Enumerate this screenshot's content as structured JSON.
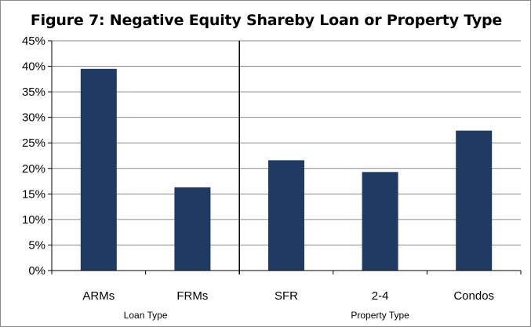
{
  "chart_data": {
    "type": "bar",
    "title": "Figure 7: Negative Equity Shareby Loan or Property Type",
    "categories": [
      "ARMs",
      "FRMs",
      "SFR",
      "2-4",
      "Condos"
    ],
    "values": [
      39.5,
      16.3,
      21.6,
      19.3,
      27.4
    ],
    "groups": [
      {
        "label": "Loan Type",
        "categories": [
          "ARMs",
          "FRMs"
        ]
      },
      {
        "label": "Property Type",
        "categories": [
          "SFR",
          "2-4",
          "Condos"
        ]
      }
    ],
    "ylim": [
      0,
      45
    ],
    "yticks": [
      "0%",
      "5%",
      "10%",
      "15%",
      "20%",
      "25%",
      "30%",
      "35%",
      "40%",
      "45%"
    ],
    "ytick_values": [
      0,
      5,
      10,
      15,
      20,
      25,
      30,
      35,
      40,
      45
    ],
    "grid": true,
    "bar_color": "#1f3b63",
    "grid_color": "#8a8a8a",
    "divider_color": "#000000"
  }
}
